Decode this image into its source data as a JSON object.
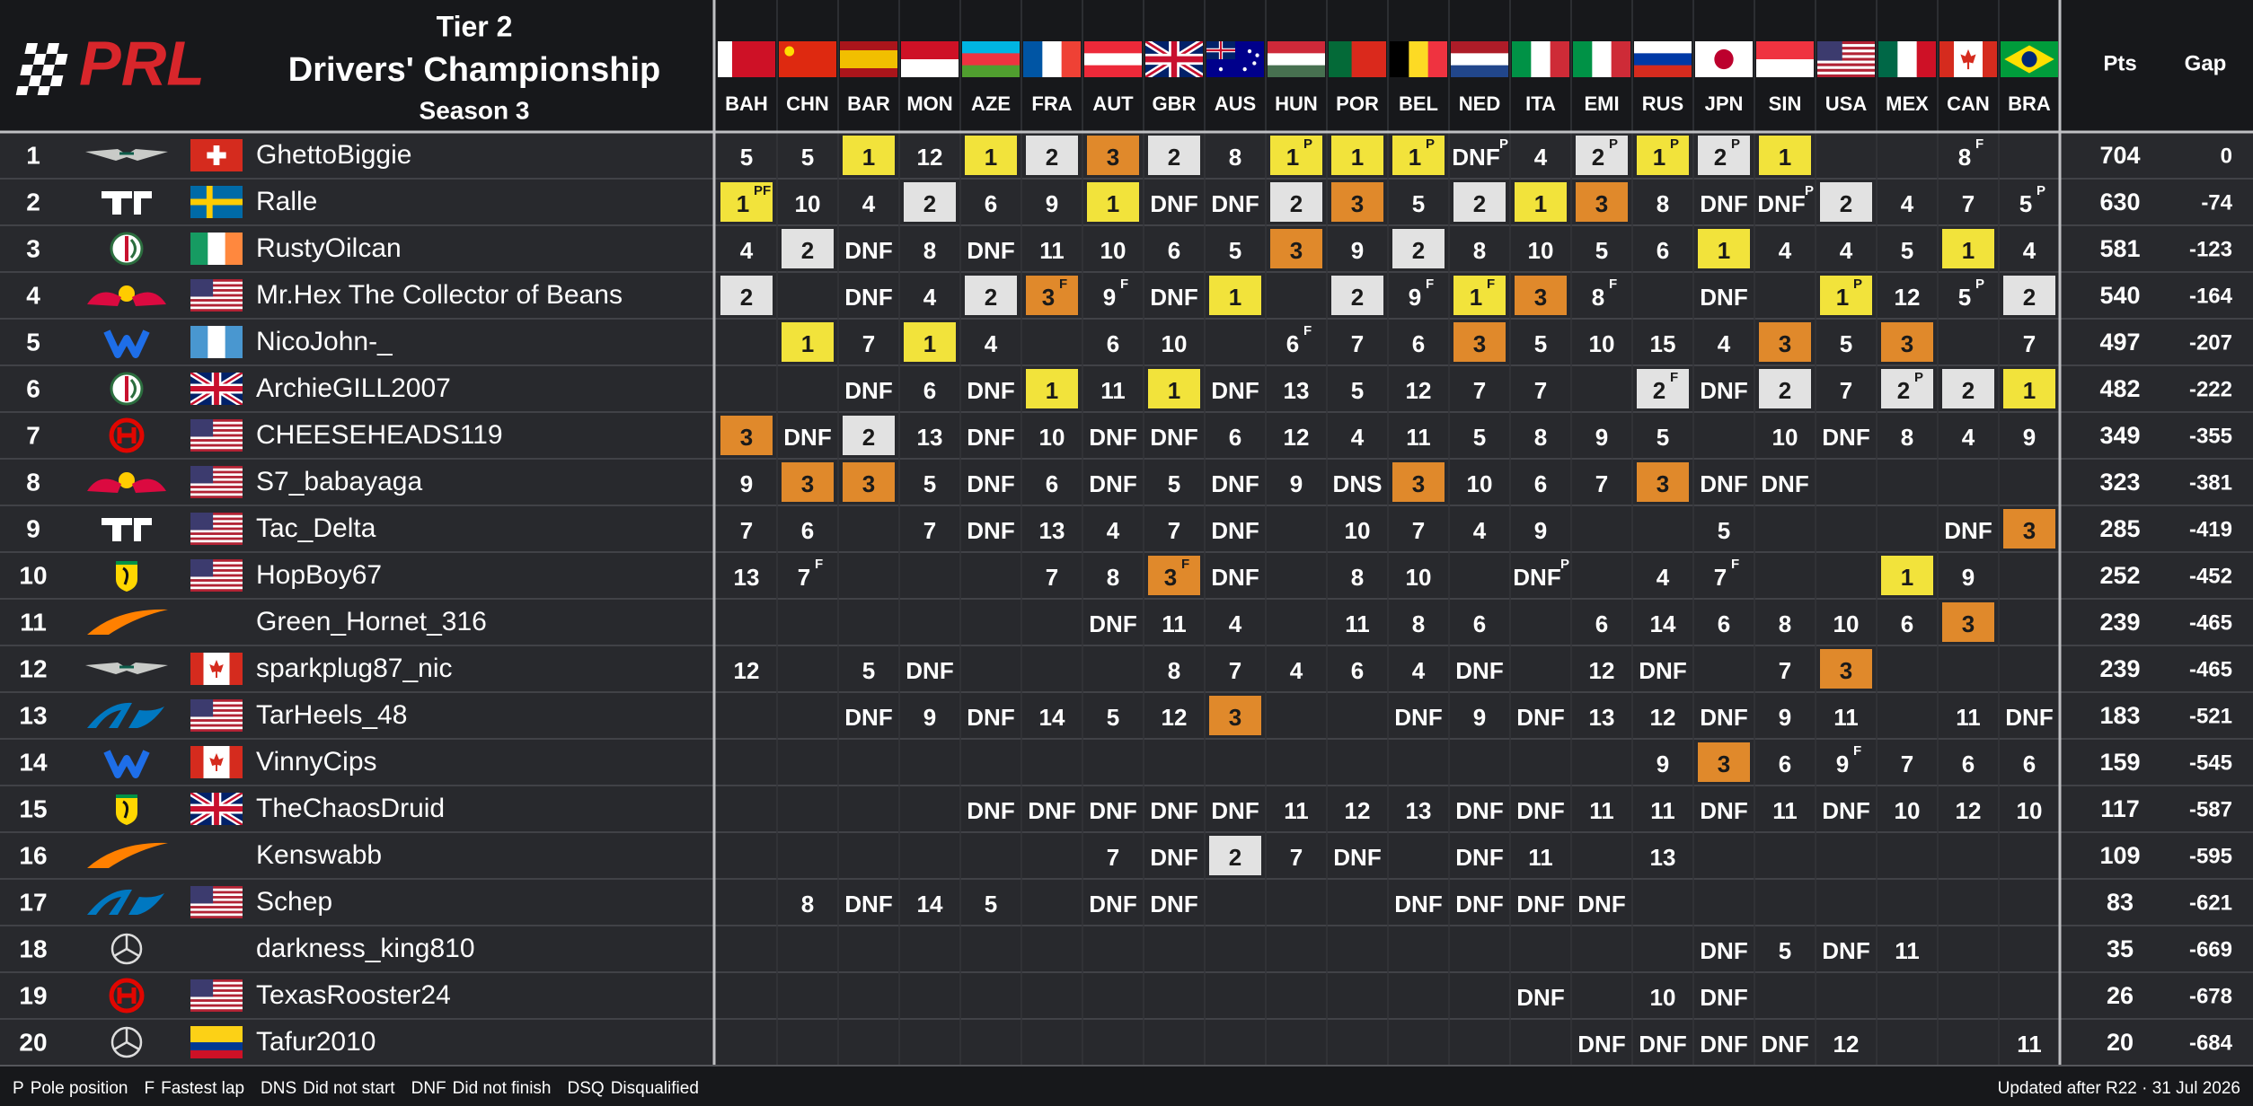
{
  "header": {
    "logo": "PRL",
    "tier": "Tier 2",
    "title": "Drivers' Championship",
    "season": "Season 3"
  },
  "columns": {
    "races": [
      "BAH",
      "CHN",
      "BAR",
      "MON",
      "AZE",
      "FRA",
      "AUT",
      "GBR",
      "AUS",
      "HUN",
      "POR",
      "BEL",
      "NED",
      "ITA",
      "EMI",
      "RUS",
      "JPN",
      "SIN",
      "USA",
      "MEX",
      "CAN",
      "BRA"
    ],
    "points": "Pts",
    "gap": "Gap"
  },
  "podium_colors": {
    "1": "#f2e33b",
    "2": "#e2e2e2",
    "3": "#e0892b"
  },
  "rows": [
    {
      "pos": 1,
      "driver": "GhettoBiggie",
      "results": [
        5,
        5,
        1,
        12,
        1,
        2,
        3,
        2,
        8,
        {
          "pos": 1,
          "note": "P"
        },
        1,
        {
          "pos": 1,
          "note": "P"
        },
        {
          "pos": "DNF",
          "note": "P"
        },
        4,
        {
          "pos": 2,
          "note": "P"
        },
        {
          "pos": 1,
          "note": "P"
        },
        {
          "pos": 2,
          "note": "P"
        },
        1,
        null,
        null,
        {
          "pos": 8,
          "note": "F"
        },
        null
      ],
      "pts": 704,
      "gap": 0
    },
    {
      "pos": 2,
      "driver": "Ralle",
      "results": [
        {
          "pos": 1,
          "note": "PF"
        },
        10,
        4,
        2,
        6,
        9,
        1,
        "DNF",
        "DNF",
        2,
        3,
        5,
        2,
        1,
        3,
        8,
        "DNF",
        {
          "pos": "DNF",
          "note": "P"
        },
        2,
        4,
        7,
        {
          "pos": 5,
          "note": "P"
        }
      ],
      "pts": 630,
      "gap": -74
    },
    {
      "pos": 3,
      "driver": "RustyOilcan",
      "results": [
        4,
        2,
        "DNF",
        8,
        "DNF",
        11,
        10,
        6,
        5,
        3,
        9,
        2,
        8,
        10,
        5,
        6,
        1,
        4,
        4,
        5,
        1,
        4
      ],
      "pts": 581,
      "gap": -123
    },
    {
      "pos": 4,
      "driver": "Mr.Hex The Collector of Beans",
      "results": [
        2,
        null,
        "DNF",
        4,
        2,
        {
          "pos": 3,
          "note": "F"
        },
        {
          "pos": 9,
          "note": "F"
        },
        "DNF",
        1,
        null,
        2,
        {
          "pos": 9,
          "note": "F"
        },
        {
          "pos": 1,
          "note": "F"
        },
        3,
        {
          "pos": 8,
          "note": "F"
        },
        null,
        "DNF",
        null,
        {
          "pos": 1,
          "note": "P"
        },
        12,
        {
          "pos": 5,
          "note": "P"
        },
        2
      ],
      "pts": 540,
      "gap": -164
    },
    {
      "pos": 5,
      "driver": "NicoJohn-_",
      "results": [
        null,
        1,
        7,
        1,
        4,
        null,
        6,
        10,
        null,
        {
          "pos": 6,
          "note": "F"
        },
        7,
        6,
        3,
        5,
        10,
        15,
        4,
        3,
        5,
        3,
        null,
        7
      ],
      "pts": 497,
      "gap": -207
    },
    {
      "pos": 6,
      "driver": "ArchieGILL2007",
      "results": [
        null,
        null,
        "DNF",
        6,
        "DNF",
        1,
        11,
        1,
        "DNF",
        13,
        5,
        12,
        7,
        7,
        null,
        {
          "pos": 2,
          "note": "F"
        },
        "DNF",
        2,
        7,
        {
          "pos": 2,
          "note": "P"
        },
        2,
        1
      ],
      "pts": 482,
      "gap": -222
    },
    {
      "pos": 7,
      "driver": "CHEESEHEADS119",
      "results": [
        3,
        "DNF",
        2,
        13,
        "DNF",
        10,
        "DNF",
        "DNF",
        6,
        12,
        4,
        11,
        5,
        8,
        9,
        5,
        null,
        10,
        "DNF",
        8,
        4,
        9
      ],
      "pts": 349,
      "gap": -355
    },
    {
      "pos": 8,
      "driver": "S7_babayaga",
      "results": [
        9,
        3,
        3,
        5,
        "DNF",
        6,
        "DNF",
        5,
        "DNF",
        9,
        "DNS",
        3,
        10,
        6,
        7,
        3,
        "DNF",
        "DNF",
        null,
        null,
        null,
        null
      ],
      "pts": 323,
      "gap": -381
    },
    {
      "pos": 9,
      "driver": "Tac_Delta",
      "results": [
        7,
        6,
        null,
        7,
        "DNF",
        13,
        4,
        7,
        "DNF",
        null,
        10,
        7,
        4,
        9,
        null,
        null,
        5,
        null,
        null,
        null,
        "DNF",
        3
      ],
      "pts": 285,
      "gap": -419
    },
    {
      "pos": 10,
      "driver": "HopBoy67",
      "results": [
        13,
        {
          "pos": 7,
          "note": "F"
        },
        null,
        null,
        null,
        7,
        8,
        {
          "pos": 3,
          "note": "F"
        },
        "DNF",
        null,
        8,
        10,
        null,
        {
          "pos": "DNF",
          "note": "P"
        },
        null,
        4,
        {
          "pos": 7,
          "note": "F"
        },
        null,
        null,
        1,
        9,
        null
      ],
      "pts": 252,
      "gap": -452
    },
    {
      "pos": 11,
      "driver": "Green_Hornet_316",
      "results": [
        null,
        null,
        null,
        null,
        null,
        null,
        "DNF",
        11,
        4,
        null,
        11,
        8,
        6,
        null,
        6,
        14,
        6,
        8,
        10,
        6,
        3,
        null
      ],
      "pts": 239,
      "gap": -465
    },
    {
      "pos": 12,
      "driver": "sparkplug87_nic",
      "results": [
        12,
        null,
        5,
        "DNF",
        null,
        null,
        null,
        8,
        7,
        4,
        6,
        4,
        "DNF",
        null,
        12,
        "DNF",
        null,
        7,
        3,
        null,
        null,
        null
      ],
      "pts": 239,
      "gap": -465
    },
    {
      "pos": 13,
      "driver": "TarHeels_48",
      "results": [
        null,
        null,
        "DNF",
        9,
        "DNF",
        14,
        5,
        12,
        3,
        null,
        null,
        "DNF",
        9,
        "DNF",
        13,
        12,
        "DNF",
        9,
        11,
        null,
        11,
        "DNF"
      ],
      "pts": 183,
      "gap": -521
    },
    {
      "pos": 14,
      "driver": "VinnyCips",
      "results": [
        null,
        null,
        null,
        null,
        null,
        null,
        null,
        null,
        null,
        null,
        null,
        null,
        null,
        null,
        null,
        9,
        3,
        6,
        {
          "pos": 9,
          "note": "F"
        },
        7,
        6,
        6
      ],
      "pts": 159,
      "gap": -545
    },
    {
      "pos": 15,
      "driver": "TheChaosDruid",
      "results": [
        null,
        null,
        null,
        null,
        "DNF",
        "DNF",
        "DNF",
        "DNF",
        "DNF",
        11,
        12,
        13,
        "DNF",
        "DNF",
        11,
        11,
        "DNF",
        11,
        "DNF",
        10,
        12,
        10
      ],
      "pts": 117,
      "gap": -587
    },
    {
      "pos": 16,
      "driver": "Kenswabb",
      "results": [
        null,
        null,
        null,
        null,
        null,
        null,
        7,
        "DNF",
        2,
        7,
        "DNF",
        null,
        "DNF",
        11,
        null,
        13,
        null,
        null,
        null,
        null,
        null,
        null
      ],
      "pts": 109,
      "gap": -595
    },
    {
      "pos": 17,
      "driver": "Schep",
      "results": [
        null,
        8,
        "DNF",
        14,
        5,
        null,
        "DNF",
        "DNF",
        null,
        null,
        null,
        "DNF",
        "DNF",
        "DNF",
        "DNF",
        null,
        null,
        null,
        null,
        null,
        null,
        null
      ],
      "pts": 83,
      "gap": -621
    },
    {
      "pos": 18,
      "driver": "darkness_king810",
      "results": [
        null,
        null,
        null,
        null,
        null,
        null,
        null,
        null,
        null,
        null,
        null,
        null,
        null,
        null,
        null,
        null,
        "DNF",
        5,
        "DNF",
        11,
        null,
        null
      ],
      "pts": 35,
      "gap": -669
    },
    {
      "pos": 19,
      "driver": "TexasRooster24",
      "results": [
        null,
        null,
        null,
        null,
        null,
        null,
        null,
        null,
        null,
        null,
        null,
        null,
        null,
        "DNF",
        null,
        10,
        "DNF",
        null,
        null,
        null,
        null,
        null
      ],
      "pts": 26,
      "gap": -678
    },
    {
      "pos": 20,
      "driver": "Tafur2010",
      "results": [
        null,
        null,
        null,
        null,
        null,
        null,
        null,
        null,
        null,
        null,
        null,
        null,
        null,
        null,
        "DNF",
        "DNF",
        "DNF",
        "DNF",
        12,
        null,
        null,
        11
      ],
      "pts": 20,
      "gap": -684
    }
  ],
  "footer": {
    "legend": [
      {
        "key": "P",
        "text": "Pole position"
      },
      {
        "key": "F",
        "text": "Fastest lap"
      },
      {
        "key": "DNS",
        "text": "Did not start"
      },
      {
        "key": "DNF",
        "text": "Did not finish"
      },
      {
        "key": "DSQ",
        "text": "Disqualified"
      }
    ],
    "updated": "Updated after R22 · 31 Jul 2026"
  }
}
